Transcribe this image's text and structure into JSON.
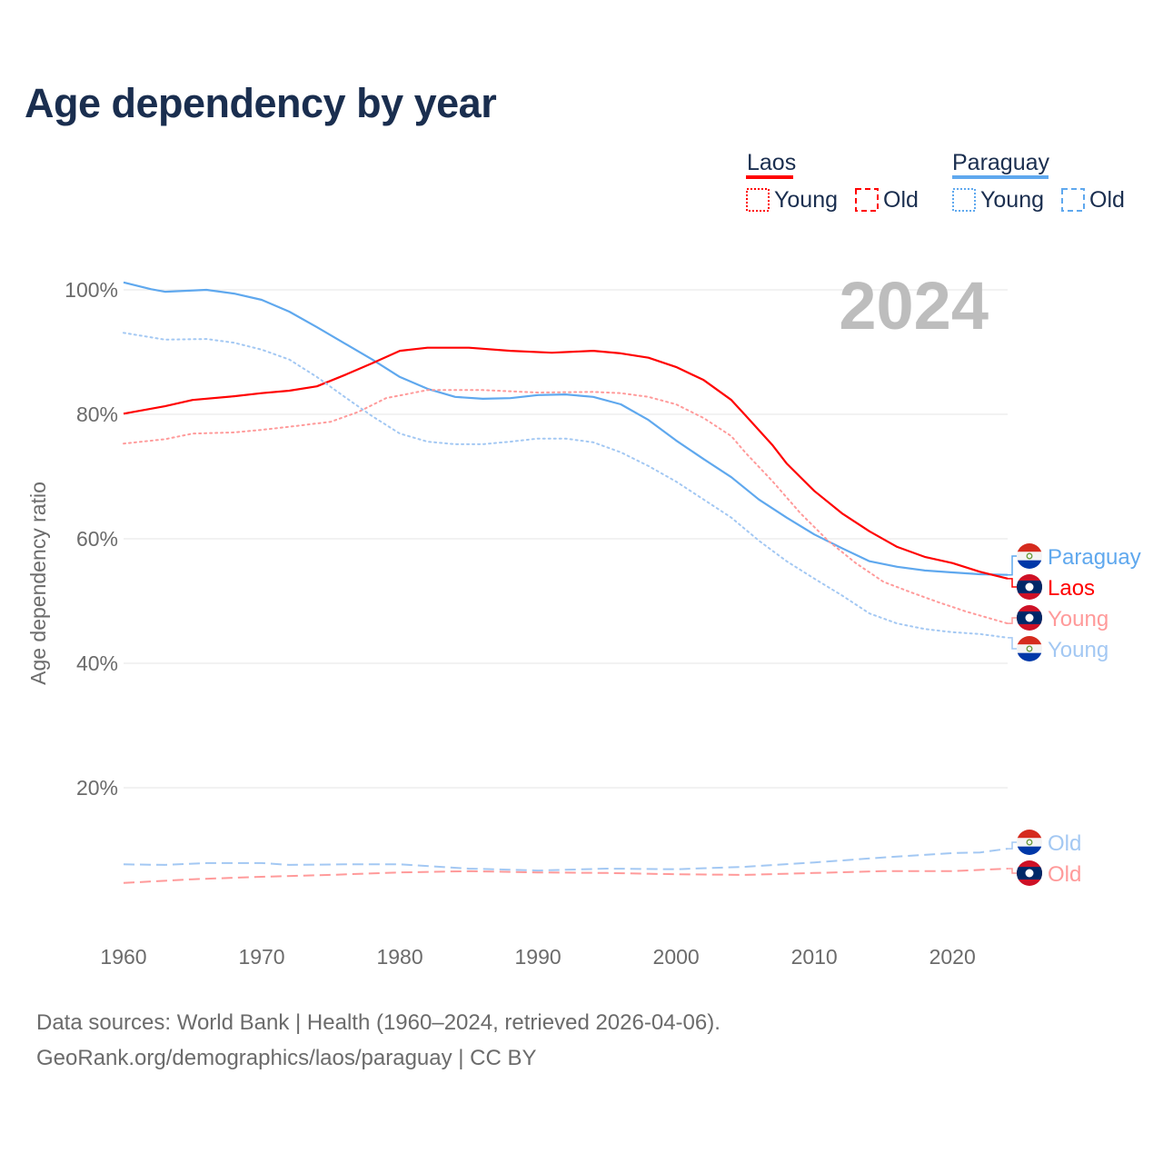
{
  "title": "Age dependency by year",
  "footer": {
    "line1": "Data sources: World Bank | Health (1960–2024, retrieved 2026-04-06).",
    "line2": "GeoRank.org/demographics/laos/paraguay | CC BY"
  },
  "colors": {
    "laos": "#ff0000",
    "laos_light": "#ff9a9a",
    "paraguay": "#5fa8ee",
    "paraguay_light": "#a3c8f3",
    "grid": "#e6e6e6",
    "axis_text": "#6b6b6b",
    "year": "#bdbdbd"
  },
  "chart_data": {
    "type": "line",
    "title": "Age dependency by year",
    "xlabel": "",
    "ylabel": "Age dependency ratio",
    "xlim": [
      1960,
      2024
    ],
    "ylim": [
      0,
      100
    ],
    "xticks": [
      "1960",
      "1970",
      "1980",
      "1990",
      "2000",
      "2010",
      "2020"
    ],
    "yticks": [
      "20%",
      "40%",
      "60%",
      "80%",
      "100%"
    ],
    "grid": true,
    "year_watermark": "2024",
    "legend": {
      "placement": "top-right",
      "groups": [
        {
          "country": "Laos",
          "items": [
            "Young",
            "Old"
          ]
        },
        {
          "country": "Paraguay",
          "items": [
            "Young",
            "Old"
          ]
        }
      ]
    },
    "series": [
      {
        "name": "Paraguay",
        "label": "Paraguay",
        "country": "paraguay",
        "style": "solid",
        "flag": "paraguay-flag",
        "x": [
          1960,
          1962,
          1963,
          1966,
          1968,
          1970,
          1972,
          1974,
          1976,
          1978,
          1980,
          1982,
          1984,
          1986,
          1988,
          1990,
          1992,
          1994,
          1996,
          1998,
          2000,
          2002,
          2004,
          2006,
          2008,
          2010,
          2012,
          2014,
          2016,
          2018,
          2020,
          2022,
          2024
        ],
        "y": [
          101.2,
          100.1,
          99.7,
          100,
          99.4,
          98.4,
          96.5,
          94,
          91.4,
          88.8,
          86,
          84.1,
          82.8,
          82.5,
          82.6,
          83.1,
          83.2,
          82.8,
          81.6,
          79.1,
          75.8,
          72.8,
          69.9,
          66.3,
          63.4,
          60.7,
          58.5,
          56.4,
          55.5,
          54.9,
          54.6,
          54.3,
          54.2
        ]
      },
      {
        "name": "Laos",
        "label": "Laos",
        "country": "laos",
        "style": "solid",
        "flag": "laos-flag",
        "x": [
          1960,
          1963,
          1965,
          1968,
          1970,
          1972,
          1974,
          1976,
          1978,
          1980,
          1982,
          1985,
          1988,
          1991,
          1994,
          1996,
          1998,
          2000,
          2002,
          2004,
          2005,
          2007,
          2008,
          2010,
          2012,
          2014,
          2016,
          2018,
          2020,
          2022,
          2024
        ],
        "y": [
          80.1,
          81.3,
          82.3,
          82.9,
          83.4,
          83.8,
          84.5,
          86.3,
          88.2,
          90.2,
          90.7,
          90.7,
          90.2,
          89.9,
          90.2,
          89.8,
          89.1,
          87.6,
          85.5,
          82.3,
          79.9,
          75,
          72.1,
          67.7,
          64.1,
          61.2,
          58.7,
          57.1,
          56.1,
          54.7,
          53.6
        ]
      },
      {
        "name": "Laos Young",
        "label": "Young",
        "country": "laos",
        "style": "dotted",
        "flag": "laos-flag",
        "x": [
          1960,
          1963,
          1965,
          1968,
          1970,
          1972,
          1975,
          1977,
          1979,
          1982,
          1986,
          1990,
          1994,
          1996,
          1998,
          2000,
          2002,
          2004,
          2005,
          2007,
          2009,
          2011,
          2013,
          2015,
          2017,
          2019,
          2021,
          2024
        ],
        "y": [
          75.3,
          76,
          76.9,
          77.1,
          77.5,
          78,
          78.8,
          80.4,
          82.6,
          83.9,
          83.9,
          83.5,
          83.6,
          83.4,
          82.8,
          81.6,
          79.4,
          76.5,
          73.9,
          69.2,
          64.1,
          59.7,
          56.1,
          53.1,
          51.4,
          49.8,
          48.3,
          46.4
        ]
      },
      {
        "name": "Paraguay Young",
        "label": "Young",
        "country": "paraguay",
        "style": "dotted",
        "flag": "paraguay-flag",
        "x": [
          1960,
          1963,
          1966,
          1968,
          1970,
          1972,
          1974,
          1976,
          1978,
          1980,
          1982,
          1984,
          1986,
          1988,
          1990,
          1992,
          1994,
          1996,
          1998,
          2000,
          2002,
          2004,
          2006,
          2008,
          2010,
          2012,
          2014,
          2016,
          2018,
          2020,
          2022,
          2024
        ],
        "y": [
          93.1,
          92,
          92.1,
          91.5,
          90.4,
          88.8,
          86,
          82.8,
          79.7,
          76.9,
          75.6,
          75.2,
          75.2,
          75.6,
          76.1,
          76.1,
          75.5,
          73.9,
          71.7,
          69.2,
          66.3,
          63.4,
          59.7,
          56.4,
          53.6,
          50.9,
          48,
          46.4,
          45.5,
          45,
          44.7,
          44.1
        ]
      },
      {
        "name": "Paraguay Old",
        "label": "Old",
        "country": "paraguay",
        "style": "dashed",
        "flag": "paraguay-flag",
        "x": [
          1960,
          1963,
          1966,
          1970,
          1972,
          1976,
          1980,
          1985,
          1990,
          1995,
          2000,
          2005,
          2010,
          2015,
          2020,
          2022,
          2024
        ],
        "y": [
          7.7,
          7.6,
          7.9,
          7.9,
          7.6,
          7.7,
          7.7,
          7,
          6.7,
          7,
          6.9,
          7.3,
          8,
          8.8,
          9.5,
          9.6,
          10.2
        ]
      },
      {
        "name": "Laos Old",
        "label": "Old",
        "country": "laos",
        "style": "dashed",
        "flag": "laos-flag",
        "x": [
          1960,
          1965,
          1970,
          1975,
          1980,
          1985,
          1990,
          1995,
          2000,
          2005,
          2010,
          2015,
          2020,
          2024
        ],
        "y": [
          4.7,
          5.3,
          5.7,
          6,
          6.4,
          6.6,
          6.4,
          6.3,
          6.1,
          6,
          6.3,
          6.6,
          6.6,
          7
        ]
      }
    ]
  }
}
